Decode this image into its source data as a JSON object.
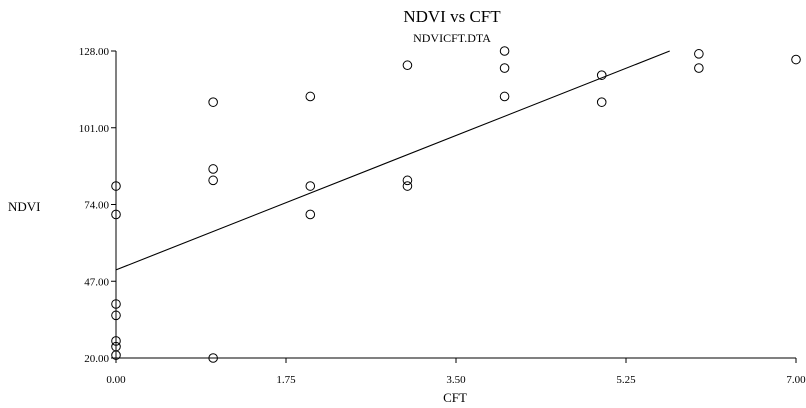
{
  "chart_data": {
    "type": "scatter",
    "title": "NDVI vs CFT",
    "subtitle": "NDVICFT.DTA",
    "xlabel": "CFT",
    "ylabel": "NDVI",
    "xlim": [
      0,
      7
    ],
    "ylim": [
      20,
      128
    ],
    "xticks": [
      0,
      1.75,
      3.5,
      5.25,
      7
    ],
    "xtick_labels": [
      "0.00",
      "1.75",
      "3.50",
      "5.25",
      "7.00"
    ],
    "yticks": [
      20,
      47,
      74,
      101,
      128
    ],
    "ytick_labels": [
      "20.00",
      "47.00",
      "74.00",
      "101.00",
      "128.00"
    ],
    "grid": false,
    "points": [
      {
        "x": 0,
        "y": 80.5
      },
      {
        "x": 0,
        "y": 70.5
      },
      {
        "x": 0,
        "y": 39
      },
      {
        "x": 0,
        "y": 35
      },
      {
        "x": 0,
        "y": 26
      },
      {
        "x": 0,
        "y": 24
      },
      {
        "x": 0,
        "y": 21
      },
      {
        "x": 1,
        "y": 110
      },
      {
        "x": 1,
        "y": 86.5
      },
      {
        "x": 1,
        "y": 82.5
      },
      {
        "x": 1,
        "y": 20
      },
      {
        "x": 2,
        "y": 112
      },
      {
        "x": 2,
        "y": 80.5
      },
      {
        "x": 2,
        "y": 70.5
      },
      {
        "x": 3,
        "y": 123
      },
      {
        "x": 3,
        "y": 82.5
      },
      {
        "x": 3,
        "y": 80.5
      },
      {
        "x": 4,
        "y": 128
      },
      {
        "x": 4,
        "y": 122
      },
      {
        "x": 4,
        "y": 112
      },
      {
        "x": 5,
        "y": 119.5
      },
      {
        "x": 5,
        "y": 110
      },
      {
        "x": 6,
        "y": 127
      },
      {
        "x": 6,
        "y": 122
      },
      {
        "x": 7,
        "y": 125
      }
    ],
    "trend_line": {
      "x": [
        0,
        5.7
      ],
      "y": [
        51,
        128
      ]
    },
    "colors": {
      "axis": "#000000",
      "marker": "#000000",
      "background": "#ffffff"
    }
  }
}
